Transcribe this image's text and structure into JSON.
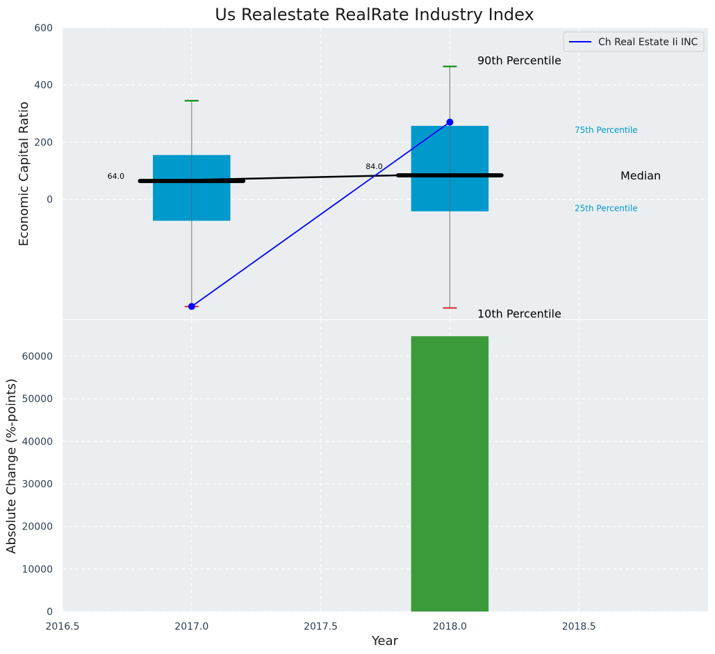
{
  "chart_data": [
    {
      "type": "box",
      "title": "Us Realestate RealRate Industry Index",
      "xlabel": "",
      "ylabel": "Economic Capital Ratio",
      "ylim": [
        -420,
        600
      ],
      "yticks": [
        0,
        200,
        400,
        600
      ],
      "xlim": [
        2016.5,
        2019.0
      ],
      "grid": true,
      "legend": {
        "position": "top-right",
        "entries": [
          "Ch Real Estate Ii INC"
        ]
      },
      "boxes": [
        {
          "x": 2017.0,
          "p10": -375,
          "p25": -75,
          "median": 64.0,
          "p75": 155,
          "p90": 345
        },
        {
          "x": 2018.0,
          "p10": -380,
          "p25": -42,
          "median": 84.0,
          "p75": 257,
          "p90": 465
        }
      ],
      "median_labels": [
        "64.0",
        "84.0"
      ],
      "company_series": {
        "name": "Ch Real Estate Ii INC",
        "x": [
          2017.0,
          2018.0
        ],
        "values": [
          -375,
          270
        ]
      },
      "annotations": {
        "p90": "90th Percentile",
        "p75": "75th Percentile",
        "median": "Median",
        "p25": "25th Percentile",
        "p10": "10th Percentile"
      }
    },
    {
      "type": "bar",
      "title": "",
      "xlabel": "Year",
      "ylabel": "Absolute Change (%-points)",
      "xlim": [
        2016.5,
        2019.0
      ],
      "xticks": [
        2016.5,
        2017.0,
        2017.5,
        2018.0,
        2018.5
      ],
      "xtick_labels": [
        "2016.5",
        "2017.0",
        "2017.5",
        "2018.0",
        "2018.5"
      ],
      "ylim": [
        0,
        68500
      ],
      "yticks": [
        0,
        10000,
        20000,
        30000,
        40000,
        50000,
        60000
      ],
      "grid": true,
      "bars": [
        {
          "x": 2018.0,
          "value": 64700
        }
      ]
    }
  ],
  "colors": {
    "panel_bg": "#eaeef0",
    "grid": "#ffffff",
    "box": "#0099cc",
    "median": "#000000",
    "company": "#0000ff",
    "p90_cap": "#008000",
    "p10_cap": "#d62728",
    "bar": "#3b9b3b",
    "tick_text": "#2d3e50",
    "annotation_cyan": "#0099cc"
  }
}
